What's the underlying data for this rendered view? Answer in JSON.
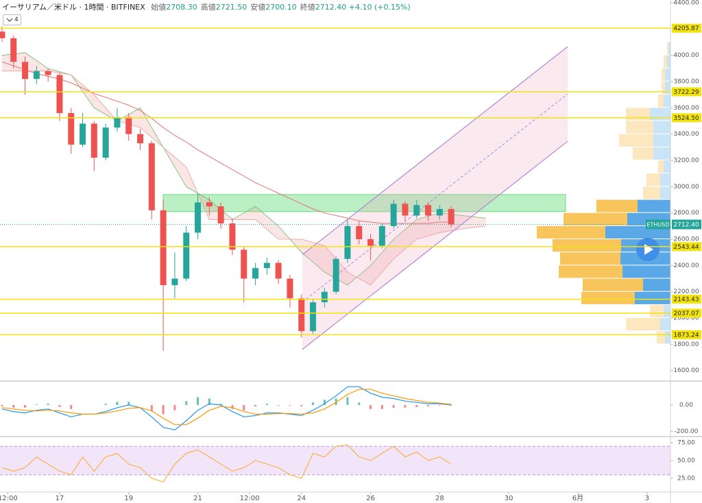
{
  "header": {
    "title": "イーサリアム／米ドル · 1時間 · BITFINEX",
    "indicator_count": 4,
    "fields": [
      {
        "label": "始値",
        "value": "2708.30"
      },
      {
        "label": "高値",
        "value": "2721.50"
      },
      {
        "label": "安値",
        "value": "2700.10"
      },
      {
        "label": "終値",
        "value": "2712.40"
      }
    ],
    "change": "+4.10 (+0.15%)"
  },
  "chart_data": {
    "type": "candlestick",
    "x": [
      -40,
      -32,
      -24,
      -16,
      -8,
      0,
      8,
      16,
      24,
      32,
      40,
      48,
      56,
      64,
      72,
      80,
      88,
      96,
      104,
      112,
      120,
      128,
      136,
      144,
      152,
      160,
      168,
      176,
      184,
      192,
      200,
      208,
      216,
      224,
      232,
      240,
      248,
      256,
      264,
      272
    ],
    "open": [
      4180,
      4130,
      3950,
      3820,
      3880,
      3850,
      3560,
      3320,
      3480,
      3220,
      3450,
      3530,
      3400,
      3330,
      2820,
      2250,
      2300,
      2650,
      2880,
      2850,
      2720,
      2520,
      2300,
      2380,
      2420,
      2300,
      2150,
      1900,
      2120,
      2200,
      2450,
      2700,
      2600,
      2550,
      2700,
      2870,
      2780,
      2860,
      2780,
      2830
    ],
    "high": [
      4220,
      4150,
      3990,
      3920,
      3900,
      3870,
      3600,
      3560,
      3500,
      3480,
      3600,
      3560,
      3440,
      3350,
      2900,
      2500,
      2700,
      2950,
      2920,
      2880,
      2760,
      2540,
      2420,
      2460,
      2440,
      2330,
      2180,
      2150,
      2230,
      2470,
      2750,
      2740,
      2640,
      2720,
      2900,
      2890,
      2900,
      2880,
      2860,
      2850
    ],
    "low": [
      4100,
      3900,
      3700,
      3780,
      3800,
      3500,
      3250,
      3300,
      3120,
      3200,
      3420,
      3350,
      3280,
      2750,
      1750,
      2150,
      2280,
      2600,
      2780,
      2680,
      2480,
      2120,
      2250,
      2330,
      2260,
      2080,
      1850,
      1880,
      2080,
      2180,
      2420,
      2560,
      2440,
      2530,
      2680,
      2740,
      2760,
      2740,
      2750,
      2690
    ],
    "close": [
      4130,
      3950,
      3820,
      3880,
      3850,
      3560,
      3320,
      3480,
      3220,
      3450,
      3530,
      3400,
      3330,
      2820,
      2250,
      2300,
      2650,
      2880,
      2850,
      2720,
      2520,
      2300,
      2380,
      2420,
      2300,
      2150,
      1900,
      2120,
      2200,
      2450,
      2700,
      2600,
      2550,
      2700,
      2870,
      2780,
      2860,
      2780,
      2830,
      2712.4
    ],
    "up_color": "#26a69a",
    "down_color": "#ef5350",
    "xlim": [
      -41.4,
      424.3
    ],
    "xticks": [
      {
        "value": -36,
        "label": "12:00"
      },
      {
        "value": 0,
        "label": "17"
      },
      {
        "value": 48,
        "label": "19"
      },
      {
        "value": 96,
        "label": "21"
      },
      {
        "value": 132,
        "label": "12:00"
      },
      {
        "value": 168,
        "label": "24"
      },
      {
        "value": 216,
        "label": "26"
      },
      {
        "value": 264,
        "label": "28"
      },
      {
        "value": 312,
        "label": "30"
      },
      {
        "value": 360,
        "label": "6月"
      },
      {
        "value": 408,
        "label": "3"
      }
    ],
    "ylim": [
      1525.6,
      4420.9
    ],
    "yticks": [
      {
        "value": 4400,
        "label": "4400.00"
      },
      {
        "value": 4000,
        "label": "4000.00"
      },
      {
        "value": 3800,
        "label": "3800.00"
      },
      {
        "value": 3600,
        "label": "3600.00"
      },
      {
        "value": 3400,
        "label": "3400.00"
      },
      {
        "value": 3200,
        "label": "3200.00"
      },
      {
        "value": 3000,
        "label": "3000.00"
      },
      {
        "value": 2800,
        "label": "2800.00"
      },
      {
        "value": 2600,
        "label": "2600.00"
      },
      {
        "value": 2400,
        "label": "2400.00"
      },
      {
        "value": 2200,
        "label": "2200.00"
      },
      {
        "value": 2000,
        "label": "2000.00"
      },
      {
        "value": 1800,
        "label": "1800.00"
      },
      {
        "value": 1600,
        "label": "1600.00"
      }
    ],
    "levels": [
      {
        "value": 4205.87,
        "label": "4205.87"
      },
      {
        "value": 3722.29,
        "label": "3722.29"
      },
      {
        "value": 3524.5,
        "label": "3524.50"
      },
      {
        "value": 2543.44,
        "label": "2543.44"
      },
      {
        "value": 2143.43,
        "label": "2143.43"
      },
      {
        "value": 2037.07,
        "label": "2037.07"
      },
      {
        "value": 1873.24,
        "label": "1873.24"
      }
    ],
    "level_color": "#f2e30c",
    "last_price": {
      "name": "ETHUSD",
      "value": 2712.4,
      "label": "2712.40",
      "color": "#26a69a"
    },
    "moving_average": {
      "color": "#e57373",
      "values": [
        3950,
        3920,
        3890,
        3860,
        3840,
        3820,
        3790,
        3750,
        3710,
        3680,
        3650,
        3620,
        3580,
        3520,
        3450,
        3390,
        3340,
        3280,
        3230,
        3180,
        3130,
        3080,
        3030,
        2990,
        2950,
        2910,
        2870,
        2830,
        2800,
        2780,
        2760,
        2740,
        2730,
        2720,
        2720,
        2720,
        2720,
        2720,
        2730,
        2730
      ]
    },
    "cloud": {
      "x": [
        -40,
        -24,
        -8,
        8,
        24,
        40,
        56,
        72,
        88,
        104,
        120,
        136,
        152,
        168,
        184,
        200,
        216,
        232,
        248,
        264,
        280,
        296
      ],
      "span_a": [
        4000,
        4020,
        3900,
        3850,
        3600,
        3500,
        3600,
        3300,
        3000,
        2900,
        2750,
        2850,
        2700,
        2500,
        2350,
        2250,
        2400,
        2600,
        2750,
        2800,
        2780,
        2760
      ],
      "span_b": [
        3880,
        3880,
        3880,
        3850,
        3700,
        3500,
        3450,
        3300,
        3150,
        2750,
        2750,
        2750,
        2600,
        2600,
        2550,
        2350,
        2250,
        2450,
        2600,
        2650,
        2680,
        2700
      ],
      "color_a": "#66bb6a",
      "color_b": "#ef9a9a"
    },
    "zone": {
      "x": [
        72,
        351.4
      ],
      "y": [
        2810,
        2940
      ],
      "color": "#69db7c"
    },
    "channel": {
      "x": [
        168.6,
        352.9
      ],
      "upper": [
        2482,
        4066
      ],
      "lower": [
        1761,
        3346
      ],
      "color": "#b085d8"
    },
    "volume_profile": {
      "bins": [
        1800,
        1900,
        2000,
        2100,
        2200,
        2300,
        2400,
        2500,
        2600,
        2700,
        2800,
        2900,
        3000,
        3100,
        3200,
        3300,
        3400,
        3500,
        3600,
        3700,
        3800,
        3900,
        4000,
        4100
      ],
      "up": [
        8,
        15,
        10,
        52,
        40,
        70,
        73,
        72,
        95,
        63,
        48,
        15,
        15,
        10,
        25,
        25,
        25,
        30,
        10,
        8,
        8,
        5,
        3
      ],
      "down": [
        12,
        50,
        20,
        78,
        88,
        93,
        88,
        100,
        100,
        93,
        60,
        25,
        20,
        8,
        30,
        50,
        40,
        35,
        8,
        5,
        5,
        5,
        2
      ],
      "value_area": [
        2100,
        2900
      ],
      "up_color": "#5aa9e6",
      "down_color": "#f8c45c",
      "up_color_light": "#c9e3f7",
      "down_color_light": "#fde7bf"
    },
    "macd": {
      "ylim": [
        -235,
        178
      ],
      "yticks": [
        {
          "value": 0,
          "label": "0.00"
        },
        {
          "value": -200,
          "label": "-200.00"
        }
      ],
      "macd": {
        "color": "#2196f3",
        "values": [
          -30,
          -50,
          -60,
          -40,
          -30,
          -60,
          -90,
          -70,
          -70,
          -50,
          -20,
          0,
          -20,
          -90,
          -170,
          -190,
          -120,
          -40,
          10,
          0,
          -50,
          -90,
          -80,
          -60,
          -60,
          -70,
          -80,
          -40,
          10,
          70,
          140,
          140,
          90,
          60,
          50,
          30,
          20,
          10,
          10,
          0
        ]
      },
      "signal": {
        "color": "#ff9800",
        "values": [
          -20,
          -30,
          -40,
          -45,
          -40,
          -45,
          -60,
          -70,
          -70,
          -60,
          -45,
          -25,
          -20,
          -45,
          -100,
          -150,
          -150,
          -100,
          -40,
          -10,
          -20,
          -50,
          -70,
          -70,
          -65,
          -65,
          -70,
          -60,
          -30,
          20,
          80,
          120,
          120,
          90,
          70,
          50,
          35,
          20,
          15,
          5
        ]
      },
      "histogram": {
        "up_color": "#26a69a",
        "down_color": "#ef5350",
        "values": [
          -10,
          -20,
          -20,
          5,
          10,
          -15,
          -30,
          0,
          0,
          10,
          25,
          25,
          0,
          -45,
          -70,
          -40,
          30,
          60,
          50,
          10,
          -30,
          -40,
          -10,
          10,
          -5,
          -5,
          -10,
          20,
          40,
          50,
          60,
          20,
          -30,
          -30,
          -20,
          -20,
          -15,
          -10,
          -5,
          -5
        ]
      }
    },
    "rsi": {
      "ylim": [
        5.8,
        82.7
      ],
      "yticks": [
        {
          "value": 75,
          "label": "75.00"
        },
        {
          "value": 50,
          "label": "50.00"
        },
        {
          "value": 25,
          "label": "25.00"
        }
      ],
      "band": [
        30,
        70
      ],
      "band_color": "#e9d3f7",
      "color": "#ffa726",
      "values": [
        40,
        35,
        40,
        55,
        45,
        35,
        30,
        55,
        35,
        55,
        60,
        45,
        40,
        25,
        20,
        45,
        60,
        65,
        55,
        45,
        35,
        40,
        50,
        45,
        40,
        30,
        25,
        60,
        55,
        70,
        72,
        55,
        50,
        60,
        70,
        55,
        62,
        50,
        55,
        45
      ]
    }
  }
}
